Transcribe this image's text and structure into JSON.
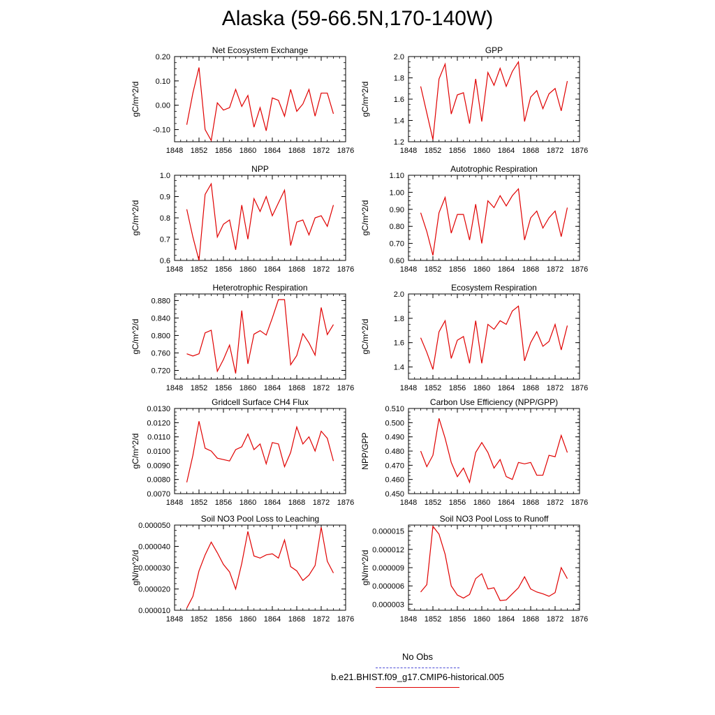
{
  "page": {
    "title": "Alaska (59-66.5N,170-140W)"
  },
  "legend": {
    "items": [
      {
        "label": "No Obs",
        "style": "dashed",
        "color": "#4b4bd6"
      },
      {
        "label": "b.e21.BHIST.f09_g17.CMIP6-historical.005",
        "style": "solid",
        "color": "#e00000"
      }
    ]
  },
  "chart_data": [
    {
      "type": "line",
      "title": "Net Ecosystem Exchange",
      "ylabel": "gC/m^2/d",
      "xlim": [
        1848,
        1876
      ],
      "xticks": [
        1848,
        1852,
        1856,
        1860,
        1864,
        1868,
        1872,
        1876
      ],
      "ylim": [
        -0.15,
        0.2
      ],
      "yticks": [
        -0.1,
        0.0,
        0.1,
        0.2
      ],
      "ytick_labels": [
        "-0.10",
        "0.00",
        "0.10",
        "0.20"
      ],
      "x": [
        1850,
        1851,
        1852,
        1853,
        1854,
        1855,
        1856,
        1857,
        1858,
        1859,
        1860,
        1861,
        1862,
        1863,
        1864,
        1865,
        1866,
        1867,
        1868,
        1869,
        1870,
        1871,
        1872,
        1873,
        1874
      ],
      "series": [
        {
          "color": "#e00000",
          "values": [
            -0.08,
            0.05,
            0.155,
            -0.1,
            -0.145,
            0.01,
            -0.02,
            -0.01,
            0.065,
            -0.005,
            0.04,
            -0.09,
            -0.01,
            -0.105,
            0.03,
            0.02,
            -0.045,
            0.065,
            -0.025,
            0.005,
            0.065,
            -0.045,
            0.05,
            0.05,
            -0.035
          ]
        }
      ]
    },
    {
      "type": "line",
      "title": "GPP",
      "ylabel": "gC/m^2/d",
      "xlim": [
        1848,
        1876
      ],
      "xticks": [
        1848,
        1852,
        1856,
        1860,
        1864,
        1868,
        1872,
        1876
      ],
      "ylim": [
        1.2,
        2.0
      ],
      "yticks": [
        1.2,
        1.4,
        1.6,
        1.8,
        2.0
      ],
      "ytick_labels": [
        "1.2",
        "1.4",
        "1.6",
        "1.8",
        "2.0"
      ],
      "x": [
        1850,
        1851,
        1852,
        1853,
        1854,
        1855,
        1856,
        1857,
        1858,
        1859,
        1860,
        1861,
        1862,
        1863,
        1864,
        1865,
        1866,
        1867,
        1868,
        1869,
        1870,
        1871,
        1872,
        1873,
        1874
      ],
      "series": [
        {
          "color": "#e00000",
          "values": [
            1.72,
            1.47,
            1.22,
            1.79,
            1.93,
            1.46,
            1.64,
            1.66,
            1.37,
            1.79,
            1.39,
            1.85,
            1.73,
            1.89,
            1.72,
            1.86,
            1.95,
            1.39,
            1.62,
            1.68,
            1.51,
            1.65,
            1.7,
            1.49,
            1.77
          ]
        }
      ]
    },
    {
      "type": "line",
      "title": "NPP",
      "ylabel": "gC/m^2/d",
      "xlim": [
        1848,
        1876
      ],
      "xticks": [
        1848,
        1852,
        1856,
        1860,
        1864,
        1868,
        1872,
        1876
      ],
      "ylim": [
        0.6,
        1.0
      ],
      "yticks": [
        0.6,
        0.7,
        0.8,
        0.9,
        1.0
      ],
      "ytick_labels": [
        "0.6",
        "0.7",
        "0.8",
        "0.9",
        "1.0"
      ],
      "x": [
        1850,
        1851,
        1852,
        1853,
        1854,
        1855,
        1856,
        1857,
        1858,
        1859,
        1860,
        1861,
        1862,
        1863,
        1864,
        1865,
        1866,
        1867,
        1868,
        1869,
        1870,
        1871,
        1872,
        1873,
        1874
      ],
      "series": [
        {
          "color": "#e00000",
          "values": [
            0.84,
            0.71,
            0.6,
            0.91,
            0.96,
            0.71,
            0.77,
            0.79,
            0.65,
            0.86,
            0.7,
            0.89,
            0.83,
            0.9,
            0.81,
            0.87,
            0.93,
            0.67,
            0.78,
            0.79,
            0.72,
            0.8,
            0.81,
            0.76,
            0.86
          ]
        }
      ]
    },
    {
      "type": "line",
      "title": "Autotrophic Respiration",
      "ylabel": "gC/m^2/d",
      "xlim": [
        1848,
        1876
      ],
      "xticks": [
        1848,
        1852,
        1856,
        1860,
        1864,
        1868,
        1872,
        1876
      ],
      "ylim": [
        0.6,
        1.1
      ],
      "yticks": [
        0.6,
        0.7,
        0.8,
        0.9,
        1.0,
        1.1
      ],
      "ytick_labels": [
        "0.60",
        "0.70",
        "0.80",
        "0.90",
        "1.00",
        "1.10"
      ],
      "x": [
        1850,
        1851,
        1852,
        1853,
        1854,
        1855,
        1856,
        1857,
        1858,
        1859,
        1860,
        1861,
        1862,
        1863,
        1864,
        1865,
        1866,
        1867,
        1868,
        1869,
        1870,
        1871,
        1872,
        1873,
        1874
      ],
      "series": [
        {
          "color": "#e00000",
          "values": [
            0.88,
            0.77,
            0.63,
            0.88,
            0.97,
            0.76,
            0.87,
            0.87,
            0.72,
            0.93,
            0.7,
            0.95,
            0.91,
            0.98,
            0.92,
            0.98,
            1.02,
            0.72,
            0.85,
            0.89,
            0.79,
            0.85,
            0.89,
            0.74,
            0.91
          ]
        }
      ]
    },
    {
      "type": "line",
      "title": "Heterotrophic Respiration",
      "ylabel": "gC/m^2/d",
      "xlim": [
        1848,
        1876
      ],
      "xticks": [
        1848,
        1852,
        1856,
        1860,
        1864,
        1868,
        1872,
        1876
      ],
      "ylim": [
        0.7,
        0.895
      ],
      "yticks": [
        0.72,
        0.76,
        0.8,
        0.84,
        0.88
      ],
      "ytick_labels": [
        "0.720",
        "0.760",
        "0.800",
        "0.840",
        "0.880"
      ],
      "x": [
        1850,
        1851,
        1852,
        1853,
        1854,
        1855,
        1856,
        1857,
        1858,
        1859,
        1860,
        1861,
        1862,
        1863,
        1864,
        1865,
        1866,
        1867,
        1868,
        1869,
        1870,
        1871,
        1872,
        1873,
        1874
      ],
      "series": [
        {
          "color": "#e00000",
          "values": [
            0.758,
            0.753,
            0.758,
            0.806,
            0.812,
            0.718,
            0.745,
            0.778,
            0.713,
            0.857,
            0.735,
            0.803,
            0.811,
            0.801,
            0.84,
            0.882,
            0.882,
            0.733,
            0.754,
            0.804,
            0.783,
            0.755,
            0.864,
            0.802,
            0.825
          ]
        }
      ]
    },
    {
      "type": "line",
      "title": "Ecosystem Respiration",
      "ylabel": "gC/m^2/d",
      "xlim": [
        1848,
        1876
      ],
      "xticks": [
        1848,
        1852,
        1856,
        1860,
        1864,
        1868,
        1872,
        1876
      ],
      "ylim": [
        1.3,
        2.0
      ],
      "yticks": [
        1.4,
        1.6,
        1.8,
        2.0
      ],
      "ytick_labels": [
        "1.4",
        "1.6",
        "1.8",
        "2.0"
      ],
      "x": [
        1850,
        1851,
        1852,
        1853,
        1854,
        1855,
        1856,
        1857,
        1858,
        1859,
        1860,
        1861,
        1862,
        1863,
        1864,
        1865,
        1866,
        1867,
        1868,
        1869,
        1870,
        1871,
        1872,
        1873,
        1874
      ],
      "series": [
        {
          "color": "#e00000",
          "values": [
            1.64,
            1.52,
            1.38,
            1.69,
            1.78,
            1.47,
            1.62,
            1.65,
            1.43,
            1.78,
            1.43,
            1.75,
            1.71,
            1.78,
            1.75,
            1.86,
            1.9,
            1.45,
            1.6,
            1.69,
            1.57,
            1.61,
            1.75,
            1.54,
            1.74
          ]
        }
      ]
    },
    {
      "type": "line",
      "title": "Gridcell Surface CH4 Flux",
      "ylabel": "gC/m^2/d",
      "xlim": [
        1848,
        1876
      ],
      "xticks": [
        1848,
        1852,
        1856,
        1860,
        1864,
        1868,
        1872,
        1876
      ],
      "ylim": [
        0.007,
        0.013
      ],
      "yticks": [
        0.007,
        0.008,
        0.009,
        0.01,
        0.011,
        0.012,
        0.013
      ],
      "ytick_labels": [
        "0.0070",
        "0.0080",
        "0.0090",
        "0.0100",
        "0.0110",
        "0.0120",
        "0.0130"
      ],
      "x": [
        1850,
        1851,
        1852,
        1853,
        1854,
        1855,
        1856,
        1857,
        1858,
        1859,
        1860,
        1861,
        1862,
        1863,
        1864,
        1865,
        1866,
        1867,
        1868,
        1869,
        1870,
        1871,
        1872,
        1873,
        1874
      ],
      "series": [
        {
          "color": "#e00000",
          "values": [
            0.0078,
            0.0097,
            0.0121,
            0.0102,
            0.01,
            0.0095,
            0.0094,
            0.0093,
            0.0101,
            0.0103,
            0.0112,
            0.0101,
            0.0105,
            0.0091,
            0.0106,
            0.0105,
            0.0089,
            0.0099,
            0.0117,
            0.0105,
            0.011,
            0.01,
            0.0114,
            0.0109,
            0.0093
          ]
        }
      ]
    },
    {
      "type": "line",
      "title": "Carbon Use Efficiency (NPP/GPP)",
      "ylabel": "NPP/GPP",
      "xlim": [
        1848,
        1876
      ],
      "xticks": [
        1848,
        1852,
        1856,
        1860,
        1864,
        1868,
        1872,
        1876
      ],
      "ylim": [
        0.45,
        0.51
      ],
      "yticks": [
        0.45,
        0.46,
        0.47,
        0.48,
        0.49,
        0.5,
        0.51
      ],
      "ytick_labels": [
        "0.450",
        "0.460",
        "0.470",
        "0.480",
        "0.490",
        "0.500",
        "0.510"
      ],
      "x": [
        1850,
        1851,
        1852,
        1853,
        1854,
        1855,
        1856,
        1857,
        1858,
        1859,
        1860,
        1861,
        1862,
        1863,
        1864,
        1865,
        1866,
        1867,
        1868,
        1869,
        1870,
        1871,
        1872,
        1873,
        1874
      ],
      "series": [
        {
          "color": "#e00000",
          "values": [
            0.48,
            0.469,
            0.477,
            0.503,
            0.489,
            0.472,
            0.462,
            0.468,
            0.458,
            0.479,
            0.486,
            0.479,
            0.468,
            0.474,
            0.462,
            0.46,
            0.472,
            0.471,
            0.472,
            0.463,
            0.463,
            0.477,
            0.476,
            0.491,
            0.479
          ]
        }
      ]
    },
    {
      "type": "line",
      "title": "Soil NO3 Pool Loss to Leaching",
      "ylabel": "gN/m^2/d",
      "xlim": [
        1848,
        1876
      ],
      "xticks": [
        1848,
        1852,
        1856,
        1860,
        1864,
        1868,
        1872,
        1876
      ],
      "ylim": [
        1e-05,
        5e-05
      ],
      "yticks": [
        1e-05,
        2e-05,
        3e-05,
        4e-05,
        5e-05
      ],
      "ytick_labels": [
        "0.000010",
        "0.000020",
        "0.000030",
        "0.000040",
        "0.000050"
      ],
      "x": [
        1850,
        1851,
        1852,
        1853,
        1854,
        1855,
        1856,
        1857,
        1858,
        1859,
        1860,
        1861,
        1862,
        1863,
        1864,
        1865,
        1866,
        1867,
        1868,
        1869,
        1870,
        1871,
        1872,
        1873,
        1874
      ],
      "series": [
        {
          "color": "#e00000",
          "values": [
            1.1e-05,
            1.65e-05,
            2.85e-05,
            3.6e-05,
            4.2e-05,
            3.7e-05,
            3.15e-05,
            2.8e-05,
            2e-05,
            3.2e-05,
            4.7e-05,
            3.55e-05,
            3.45e-05,
            3.6e-05,
            3.65e-05,
            3.45e-05,
            4.3e-05,
            3.05e-05,
            2.85e-05,
            2.4e-05,
            2.65e-05,
            3.1e-05,
            4.9e-05,
            3.3e-05,
            2.75e-05
          ]
        }
      ]
    },
    {
      "type": "line",
      "title": "Soil NO3 Pool Loss to Runoff",
      "ylabel": "gN/m^2/d",
      "xlim": [
        1848,
        1876
      ],
      "xticks": [
        1848,
        1852,
        1856,
        1860,
        1864,
        1868,
        1872,
        1876
      ],
      "ylim": [
        2e-06,
        1.6e-05
      ],
      "yticks": [
        3e-06,
        6e-06,
        9e-06,
        1.2e-05,
        1.5e-05
      ],
      "ytick_labels": [
        "0.000003",
        "0.000006",
        "0.000009",
        "0.000012",
        "0.000015"
      ],
      "x": [
        1850,
        1851,
        1852,
        1853,
        1854,
        1855,
        1856,
        1857,
        1858,
        1859,
        1860,
        1861,
        1862,
        1863,
        1864,
        1865,
        1866,
        1867,
        1868,
        1869,
        1870,
        1871,
        1872,
        1873,
        1874
      ],
      "series": [
        {
          "color": "#e00000",
          "values": [
            5e-06,
            6.2e-06,
            1.58e-05,
            1.45e-05,
            1.12e-05,
            6e-06,
            4.5e-06,
            4e-06,
            4.6e-06,
            7.2e-06,
            8e-06,
            5.5e-06,
            5.7e-06,
            3.6e-06,
            3.7e-06,
            4.7e-06,
            5.7e-06,
            7.5e-06,
            5.5e-06,
            5e-06,
            4.7e-06,
            4.3e-06,
            4.9e-06,
            9e-06,
            7.2e-06
          ]
        }
      ]
    }
  ]
}
